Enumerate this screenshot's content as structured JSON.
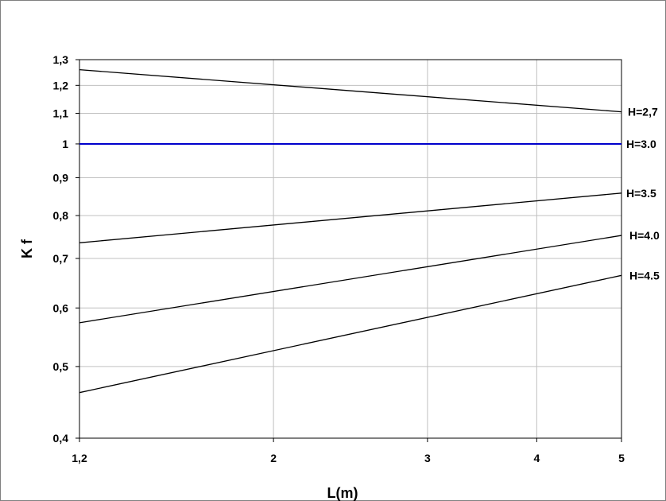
{
  "chart_data": {
    "type": "line",
    "title": "",
    "xlabel": "L(m)",
    "ylabel": "K f",
    "x_scale": "log",
    "y_scale": "log",
    "xlim": [
      1.2,
      5
    ],
    "ylim": [
      0.4,
      1.3
    ],
    "grid": true,
    "legend": "none",
    "x_ticks": [
      1.2,
      2,
      3,
      4,
      5
    ],
    "x_tick_labels": [
      "1,2",
      "2",
      "3",
      "4",
      "5"
    ],
    "y_ticks": [
      0.4,
      0.5,
      0.6,
      0.7,
      0.8,
      0.9,
      1.0,
      1.1,
      1.2,
      1.3
    ],
    "y_tick_labels": [
      "0,4",
      "0,5",
      "0,6",
      "0,7",
      "0,8",
      "0,9",
      "1",
      "1,1",
      "1,2",
      "1,3"
    ],
    "series": [
      {
        "name": "H=2,7",
        "color": "#000000",
        "x": [
          1.2,
          5
        ],
        "values": [
          1.26,
          1.105
        ]
      },
      {
        "name": "H=3.0",
        "color": "#0000cc",
        "x": [
          1.2,
          5
        ],
        "values": [
          1.0,
          1.0
        ]
      },
      {
        "name": "H=3.5",
        "color": "#000000",
        "x": [
          1.2,
          5
        ],
        "values": [
          0.735,
          0.858
        ]
      },
      {
        "name": "H=4.0",
        "color": "#000000",
        "x": [
          1.2,
          5
        ],
        "values": [
          0.573,
          0.752
        ]
      },
      {
        "name": "H=4.5",
        "color": "#000000",
        "x": [
          1.2,
          5
        ],
        "values": [
          0.461,
          0.664
        ]
      }
    ]
  }
}
